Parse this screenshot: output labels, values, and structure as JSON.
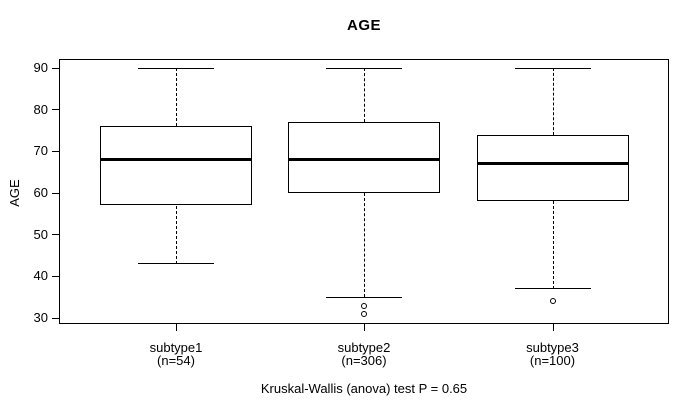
{
  "chart_data": {
    "type": "boxplot",
    "title": "AGE",
    "ylabel": "AGE",
    "yticks": [
      30,
      40,
      50,
      60,
      70,
      80,
      90
    ],
    "ylim": [
      28,
      92
    ],
    "grid": false,
    "orientation": "vertical",
    "groups": [
      {
        "label": "subtype1",
        "sublabel": "(n=54)",
        "whisker_low": 43,
        "q1": 57,
        "median": 68,
        "q3": 76,
        "whisker_high": 90,
        "outliers": []
      },
      {
        "label": "subtype2",
        "sublabel": "(n=306)",
        "whisker_low": 35,
        "q1": 60,
        "median": 68,
        "q3": 77,
        "whisker_high": 90,
        "outliers": [
          33,
          31
        ]
      },
      {
        "label": "subtype3",
        "sublabel": "(n=100)",
        "whisker_low": 37,
        "q1": 58,
        "median": 67,
        "q3": 74,
        "whisker_high": 90,
        "outliers": [
          34
        ]
      }
    ],
    "footnote": "Kruskal-Wallis (anova) test P = 0.65",
    "colors": {
      "line": "#000000",
      "box_fill": "#ffffff",
      "background": "#ffffff"
    }
  }
}
